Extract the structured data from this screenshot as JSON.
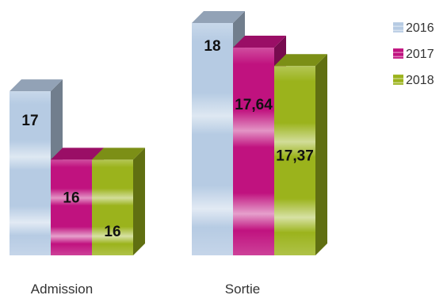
{
  "chart_data": {
    "type": "bar",
    "categories": [
      "Admission",
      "Sortie"
    ],
    "series": [
      {
        "name": "2016",
        "values": [
          17,
          18
        ],
        "labels": [
          "17",
          "18"
        ],
        "color": "#b6cbe3"
      },
      {
        "name": "2017",
        "values": [
          16,
          17.64
        ],
        "labels": [
          "16",
          "17,64"
        ],
        "color": "#c0127f"
      },
      {
        "name": "2018",
        "values": [
          16,
          17.37
        ],
        "labels": [
          "16",
          "17,37"
        ],
        "color": "#9bb31c"
      }
    ],
    "legend_position": "top-right",
    "grid": false,
    "style": "3d-clustered-column"
  }
}
